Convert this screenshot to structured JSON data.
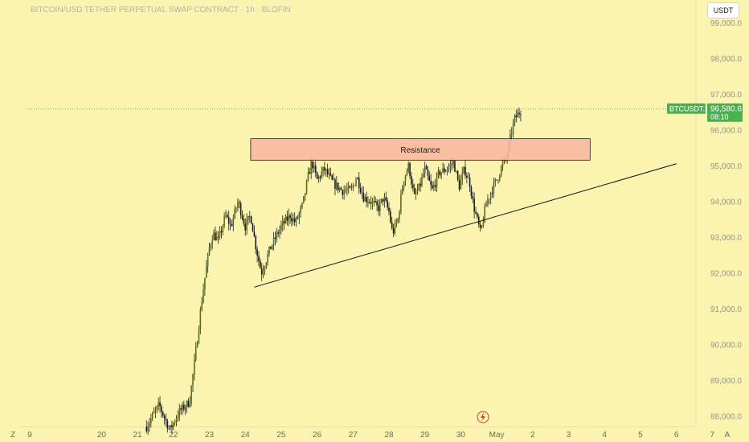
{
  "chart_data": {
    "type": "candlestick",
    "title": "BITCOIN/USD TETHER PERPETUAL SWAP CONTRACT · 1h · BLOFIN",
    "currency_button": "USDT",
    "ylim": [
      87600,
      99300
    ],
    "y_ticks": [
      "99,000.0",
      "98,000.0",
      "97,000.0",
      "96,000.0",
      "95,000.0",
      "94,000.0",
      "93,000.0",
      "92,000.0",
      "91,000.0",
      "90,000.0",
      "89,000.0",
      "88,000.0"
    ],
    "y_tick_values": [
      99000,
      98000,
      97000,
      96000,
      95000,
      94000,
      93000,
      92000,
      91000,
      90000,
      89000,
      88000
    ],
    "x_ticks": [
      {
        "label": "9",
        "day": 18
      },
      {
        "label": "20",
        "day": 20
      },
      {
        "label": "21",
        "day": 21
      },
      {
        "label": "22",
        "day": 22
      },
      {
        "label": "23",
        "day": 23
      },
      {
        "label": "24",
        "day": 24
      },
      {
        "label": "25",
        "day": 25
      },
      {
        "label": "26",
        "day": 26
      },
      {
        "label": "27",
        "day": 27
      },
      {
        "label": "28",
        "day": 28
      },
      {
        "label": "29",
        "day": 29
      },
      {
        "label": "30",
        "day": 30
      },
      {
        "label": "May",
        "day": 31
      },
      {
        "label": "2",
        "day": 32
      },
      {
        "label": "3",
        "day": 33
      },
      {
        "label": "4",
        "day": 34
      },
      {
        "label": "5",
        "day": 35
      },
      {
        "label": "6",
        "day": 36
      },
      {
        "label": "7",
        "day": 37
      }
    ],
    "corner_left": "Z",
    "corner_right": "A",
    "last_price": {
      "symbol": "BTCUSDT.P",
      "price": "96,580.6",
      "value": 96580.6,
      "countdown": "08:10",
      "color": "#4caf50"
    },
    "resistance_zone": {
      "label": "Resistance",
      "y_low": 95150,
      "y_high": 95750,
      "day_start": 24.15,
      "day_end": 33.6,
      "fill": "#f9b8a0",
      "border": "#222222"
    },
    "support_trendline": {
      "start": {
        "day": 24.25,
        "price": 91600
      },
      "end": {
        "day": 36.0,
        "price": 95050
      }
    },
    "candle_colors": {
      "up": "#5b6f1e",
      "down": "#1a1a1a",
      "wick": "#222222"
    },
    "anchors": [
      [
        21.25,
        87700
      ],
      [
        21.6,
        88300
      ],
      [
        21.9,
        87600
      ],
      [
        22.15,
        88100
      ],
      [
        22.45,
        88400
      ],
      [
        22.6,
        89600
      ],
      [
        22.75,
        90900
      ],
      [
        22.85,
        91700
      ],
      [
        23.0,
        92700
      ],
      [
        23.1,
        93100
      ],
      [
        23.25,
        92900
      ],
      [
        23.45,
        93600
      ],
      [
        23.6,
        93300
      ],
      [
        23.8,
        94000
      ],
      [
        24.0,
        93300
      ],
      [
        24.15,
        93600
      ],
      [
        24.3,
        92700
      ],
      [
        24.45,
        92000
      ],
      [
        24.7,
        92700
      ],
      [
        25.0,
        93300
      ],
      [
        25.25,
        93600
      ],
      [
        25.4,
        93400
      ],
      [
        25.6,
        93900
      ],
      [
        25.75,
        94700
      ],
      [
        25.85,
        95100
      ],
      [
        26.0,
        94600
      ],
      [
        26.2,
        94900
      ],
      [
        26.45,
        94500
      ],
      [
        26.7,
        94300
      ],
      [
        26.95,
        94300
      ],
      [
        27.1,
        94700
      ],
      [
        27.3,
        94100
      ],
      [
        27.5,
        94000
      ],
      [
        27.7,
        93800
      ],
      [
        27.85,
        94100
      ],
      [
        28.0,
        93700
      ],
      [
        28.1,
        93100
      ],
      [
        28.25,
        93500
      ],
      [
        28.4,
        94600
      ],
      [
        28.55,
        95000
      ],
      [
        28.7,
        94100
      ],
      [
        28.85,
        94400
      ],
      [
        29.0,
        94900
      ],
      [
        29.2,
        94300
      ],
      [
        29.4,
        94800
      ],
      [
        29.6,
        94900
      ],
      [
        29.8,
        95100
      ],
      [
        29.95,
        94400
      ],
      [
        30.1,
        94900
      ],
      [
        30.25,
        94500
      ],
      [
        30.35,
        93900
      ],
      [
        30.55,
        93100
      ],
      [
        30.7,
        93900
      ],
      [
        30.85,
        94300
      ],
      [
        31.0,
        94600
      ],
      [
        31.15,
        95000
      ],
      [
        31.3,
        95300
      ],
      [
        31.4,
        95900
      ],
      [
        31.5,
        96300
      ],
      [
        31.6,
        96450
      ],
      [
        31.7,
        96580
      ]
    ]
  }
}
